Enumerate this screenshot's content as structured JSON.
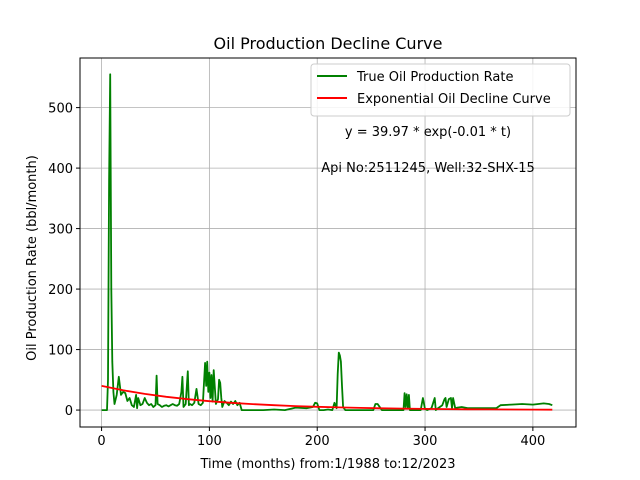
{
  "chart_data": {
    "type": "line",
    "title": "Oil Production Decline Curve",
    "xlabel": "Time (months) from:1/1988 to:12/2023",
    "ylabel": "Oil Production Rate (bbl/month)",
    "xlim": [
      -20,
      440
    ],
    "ylim": [
      -28,
      582
    ],
    "xticks": [
      0,
      100,
      200,
      300,
      400
    ],
    "yticks": [
      0,
      100,
      200,
      300,
      400,
      500
    ],
    "grid": true,
    "legend_position": "top-right",
    "annotations": [
      "y = 39.97 * exp(-0.01 * t)",
      "Api No:2511245, Well:32-SHX-15"
    ],
    "series": [
      {
        "name": "True Oil Production Rate",
        "color": "#008000",
        "x": [
          0,
          5,
          6,
          7,
          8,
          9,
          10,
          11,
          12,
          14,
          16,
          18,
          20,
          22,
          24,
          26,
          28,
          30,
          32,
          33,
          34,
          36,
          38,
          40,
          42,
          44,
          46,
          48,
          50,
          51,
          52,
          54,
          56,
          58,
          60,
          62,
          64,
          66,
          68,
          70,
          72,
          74,
          75,
          76,
          78,
          80,
          81,
          82,
          84,
          86,
          88,
          90,
          92,
          94,
          96,
          97,
          98,
          99,
          100,
          101,
          102,
          103,
          104,
          106,
          108,
          109,
          110,
          111,
          112,
          114,
          116,
          118,
          120,
          122,
          124,
          126,
          128,
          130,
          140,
          150,
          160,
          170,
          180,
          190,
          196,
          198,
          200,
          202,
          204,
          206,
          210,
          214,
          216,
          218,
          219,
          220,
          221,
          222,
          223,
          224,
          226,
          230,
          240,
          250,
          252,
          254,
          256,
          260,
          270,
          280,
          281,
          282,
          283,
          284,
          285,
          286,
          290,
          296,
          298,
          300,
          302,
          306,
          309,
          310,
          312,
          316,
          318,
          319,
          320,
          322,
          324,
          325,
          326,
          328,
          330,
          334,
          340,
          350,
          360,
          366,
          370,
          380,
          390,
          400,
          410,
          415,
          418
        ],
        "y": [
          0,
          0,
          50,
          380,
          555,
          200,
          80,
          30,
          10,
          25,
          55,
          25,
          30,
          28,
          15,
          20,
          8,
          5,
          25,
          3,
          20,
          8,
          10,
          20,
          12,
          8,
          10,
          5,
          8,
          57,
          10,
          8,
          5,
          7,
          8,
          6,
          8,
          10,
          8,
          7,
          10,
          30,
          55,
          5,
          10,
          64,
          8,
          10,
          8,
          12,
          35,
          10,
          8,
          12,
          78,
          40,
          80,
          30,
          62,
          20,
          58,
          14,
          66,
          10,
          18,
          50,
          45,
          20,
          5,
          15,
          12,
          8,
          14,
          10,
          15,
          8,
          12,
          0,
          0,
          0,
          1,
          0,
          4,
          3,
          5,
          12,
          11,
          0,
          0,
          0,
          1,
          0,
          12,
          3,
          60,
          95,
          90,
          80,
          40,
          5,
          0,
          0,
          0,
          0,
          0,
          10,
          10,
          0,
          0,
          0,
          28,
          5,
          26,
          3,
          25,
          0,
          0,
          0,
          20,
          2,
          0,
          3,
          20,
          0,
          3,
          8,
          18,
          20,
          5,
          18,
          20,
          3,
          20,
          3,
          4,
          5,
          3,
          3,
          3,
          3,
          8,
          9,
          10,
          9,
          11,
          10,
          8
        ]
      },
      {
        "name": "Exponential Oil Decline Curve",
        "color": "#ff0000",
        "formula": "39.97 * exp(-0.01 * t)",
        "x": [
          0,
          20,
          40,
          60,
          80,
          100,
          120,
          140,
          160,
          180,
          200,
          220,
          240,
          260,
          280,
          300,
          320,
          340,
          360,
          380,
          400,
          418
        ],
        "y": [
          39.97,
          32.72,
          26.79,
          21.94,
          17.96,
          14.7,
          12.04,
          9.86,
          8.07,
          6.61,
          5.41,
          4.43,
          3.63,
          2.97,
          2.43,
          1.99,
          1.63,
          1.33,
          1.09,
          0.89,
          0.73,
          0.61
        ]
      }
    ]
  }
}
